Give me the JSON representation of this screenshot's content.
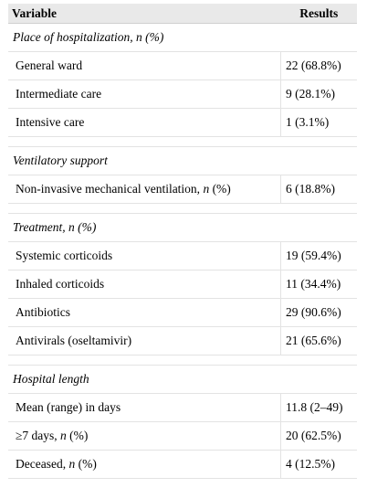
{
  "header": {
    "variable": "Variable",
    "results": "Results"
  },
  "sections": [
    {
      "title": "Place of hospitalization, n (%)",
      "rows": [
        {
          "label": "General ward",
          "value": "22 (68.8%)"
        },
        {
          "label": "Intermediate care",
          "value": "9 (28.1%)"
        },
        {
          "label": "Intensive care",
          "value": "1 (3.1%)"
        }
      ]
    },
    {
      "title": "Ventilatory support",
      "rows": [
        {
          "label": "Non-invasive mechanical ventilation, n (%)",
          "value": "6 (18.8%)"
        }
      ]
    },
    {
      "title": "Treatment, n (%)",
      "rows": [
        {
          "label": "Systemic corticoids",
          "value": "19 (59.4%)"
        },
        {
          "label": "Inhaled corticoids",
          "value": "11 (34.4%)"
        },
        {
          "label": "Antibiotics",
          "value": "29 (90.6%)"
        },
        {
          "label": "Antivirals (oseltamivir)",
          "value": "21 (65.6%)"
        }
      ]
    },
    {
      "title": "Hospital length",
      "rows": [
        {
          "label": "Mean (range) in days",
          "value": "11.8 (2–49)"
        },
        {
          "label": "≥7 days, n (%)",
          "value": "20 (62.5%)"
        },
        {
          "label": "Deceased, n (%)",
          "value": "4 (12.5%)"
        }
      ]
    }
  ]
}
